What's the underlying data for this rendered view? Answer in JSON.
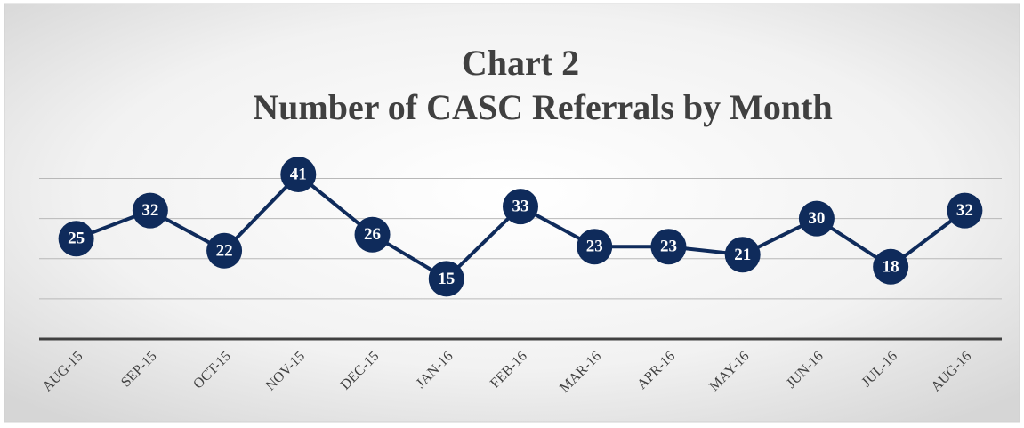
{
  "chart_data": {
    "type": "line",
    "title": [
      "Chart 2",
      "Number of CASC Referrals by Month"
    ],
    "categories": [
      "AUG-15",
      "SEP-15",
      "OCT-15",
      "NOV-15",
      "DEC-15",
      "JAN-16",
      "FEB-16",
      "MAR-16",
      "APR-16",
      "MAY-16",
      "JUN-16",
      "JUL-16",
      "AUG-16"
    ],
    "series": [
      {
        "name": "Referrals",
        "color": "#0f2b5b",
        "values": [
          25,
          32,
          22,
          41,
          26,
          15,
          33,
          23,
          23,
          21,
          30,
          18,
          32
        ]
      }
    ],
    "ylim": [
      0,
      45
    ],
    "yticks": [
      0,
      10,
      20,
      30,
      40
    ],
    "grid": true,
    "data_labels": true
  }
}
